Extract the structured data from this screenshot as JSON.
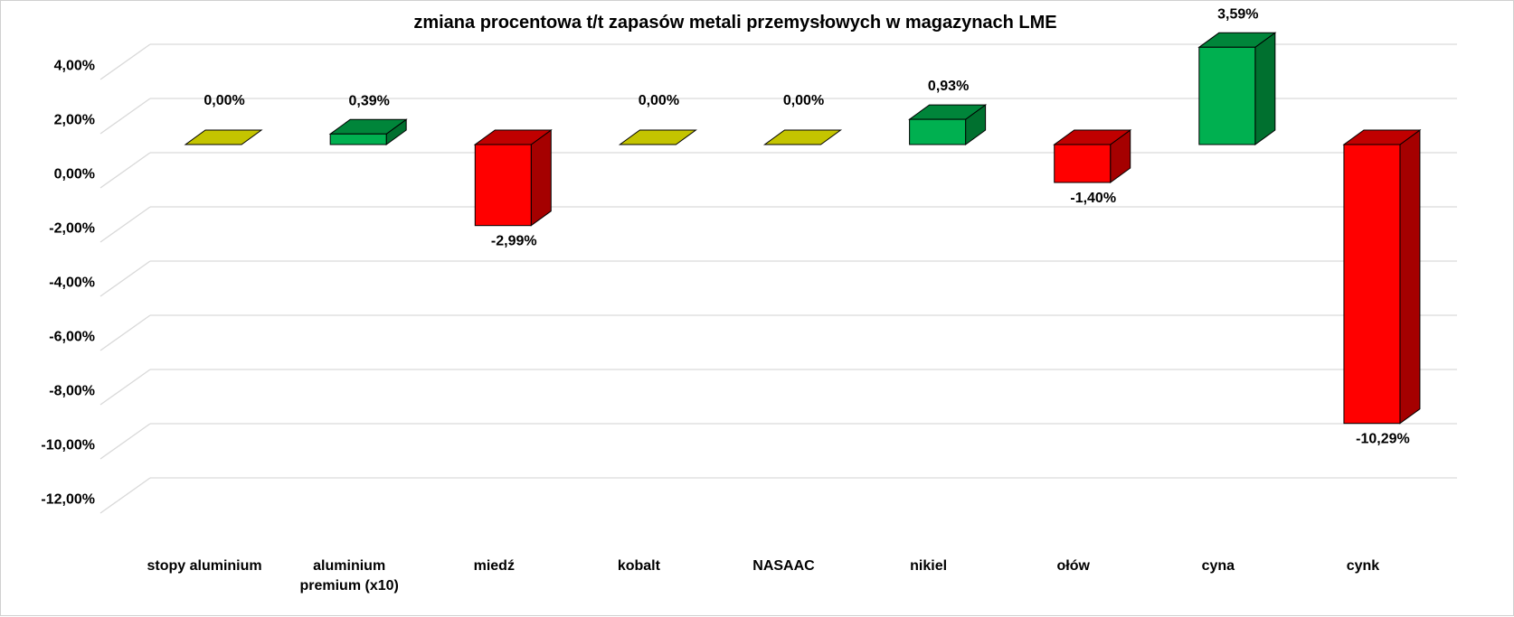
{
  "chart_data": {
    "type": "bar",
    "style": "3d-column",
    "title": "zmiana procentowa t/t zapasów metali przemysłowych w magazynach LME",
    "categories": [
      [
        "stopy aluminium"
      ],
      [
        "aluminium",
        "premium (x10)"
      ],
      [
        "miedź"
      ],
      [
        "kobalt"
      ],
      [
        "NASAAC"
      ],
      [
        "nikiel"
      ],
      [
        "ołów"
      ],
      [
        "cyna"
      ],
      [
        "cynk"
      ]
    ],
    "values": [
      0.0,
      0.39,
      -2.99,
      0.0,
      0.0,
      0.93,
      -1.4,
      3.59,
      -10.29
    ],
    "data_labels": [
      "0,00%",
      "0,39%",
      "-2,99%",
      "0,00%",
      "0,00%",
      "0,93%",
      "-1,40%",
      "3,59%",
      "-10,29%"
    ],
    "ylim": [
      -12,
      4
    ],
    "yticks": [
      4,
      2,
      0,
      -2,
      -4,
      -6,
      -8,
      -10,
      -12
    ],
    "ytick_labels": [
      "4,00%",
      "2,00%",
      "0,00%",
      "-2,00%",
      "-4,00%",
      "-6,00%",
      "-8,00%",
      "-10,00%",
      "-12,00%"
    ],
    "grid": true,
    "legend": "none",
    "colors": {
      "positive": "#00b050",
      "positive_side": "#00702f",
      "positive_top": "#00853a",
      "negative": "#ff0000",
      "negative_side": "#a50000",
      "negative_top": "#c00000",
      "zero": "#c4c400",
      "gridline": "#d9d9d9",
      "outline": "#000000"
    }
  }
}
